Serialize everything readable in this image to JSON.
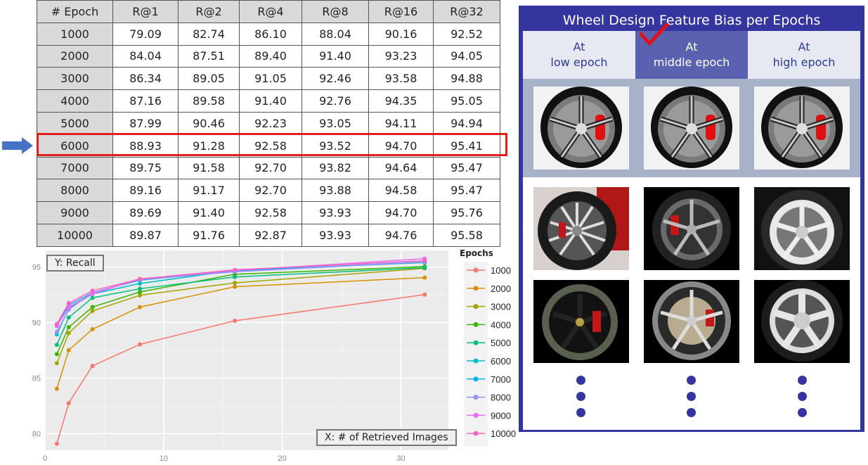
{
  "table": {
    "headers": [
      "# Epoch",
      "R@1",
      "R@2",
      "R@4",
      "R@8",
      "R@16",
      "R@32"
    ],
    "rows": [
      [
        "1000",
        "79.09",
        "82.74",
        "86.10",
        "88.04",
        "90.16",
        "92.52"
      ],
      [
        "2000",
        "84.04",
        "87.51",
        "89.40",
        "91.40",
        "93.23",
        "94.05"
      ],
      [
        "3000",
        "86.34",
        "89.05",
        "91.05",
        "92.46",
        "93.58",
        "94.88"
      ],
      [
        "4000",
        "87.16",
        "89.58",
        "91.40",
        "92.76",
        "94.35",
        "95.05"
      ],
      [
        "5000",
        "87.99",
        "90.46",
        "92.23",
        "93.05",
        "94.11",
        "94.94"
      ],
      [
        "6000",
        "88.93",
        "91.28",
        "92.58",
        "93.52",
        "94.70",
        "95.41"
      ],
      [
        "7000",
        "89.75",
        "91.58",
        "92.70",
        "93.82",
        "94.64",
        "95.47"
      ],
      [
        "8000",
        "89.16",
        "91.17",
        "92.70",
        "93.88",
        "94.58",
        "95.47"
      ],
      [
        "9000",
        "89.69",
        "91.40",
        "92.58",
        "93.93",
        "94.70",
        "95.76"
      ],
      [
        "10000",
        "89.87",
        "91.76",
        "92.87",
        "93.93",
        "94.76",
        "95.58"
      ]
    ],
    "highlighted_row": "6000",
    "highlight_color": "#e02020",
    "arrow_color": "#4472c4"
  },
  "chart_data": {
    "type": "line",
    "title": "",
    "xlabel": "X: # of Retrieved Images",
    "ylabel": "Y: Recall",
    "x": [
      1,
      2,
      4,
      8,
      16,
      32
    ],
    "xlim": [
      0,
      34
    ],
    "ylim": [
      78.5,
      96.5
    ],
    "xticks": [
      0,
      10,
      20,
      30
    ],
    "yticks": [
      80,
      85,
      90,
      95
    ],
    "grid": true,
    "legend_title": "Epochs",
    "legend_position": "right",
    "series": [
      {
        "name": "1000",
        "color": "#f8766d",
        "values": [
          79.09,
          82.74,
          86.1,
          88.04,
          90.16,
          92.52
        ]
      },
      {
        "name": "2000",
        "color": "#d89000",
        "values": [
          84.04,
          87.51,
          89.4,
          91.4,
          93.23,
          94.05
        ]
      },
      {
        "name": "3000",
        "color": "#a3a500",
        "values": [
          86.34,
          89.05,
          91.05,
          92.46,
          93.58,
          94.88
        ]
      },
      {
        "name": "4000",
        "color": "#39b600",
        "values": [
          87.16,
          89.58,
          91.4,
          92.76,
          94.35,
          95.05
        ]
      },
      {
        "name": "5000",
        "color": "#00bf7d",
        "values": [
          87.99,
          90.46,
          92.23,
          93.05,
          94.11,
          94.94
        ]
      },
      {
        "name": "6000",
        "color": "#00bfc4",
        "values": [
          88.93,
          91.28,
          92.58,
          93.52,
          94.7,
          95.41
        ]
      },
      {
        "name": "7000",
        "color": "#00b0f6",
        "values": [
          89.75,
          91.58,
          92.7,
          93.82,
          94.64,
          95.47
        ]
      },
      {
        "name": "8000",
        "color": "#9590ff",
        "values": [
          89.16,
          91.17,
          92.7,
          93.88,
          94.58,
          95.47
        ]
      },
      {
        "name": "9000",
        "color": "#e76bf3",
        "values": [
          89.69,
          91.4,
          92.58,
          93.93,
          94.7,
          95.76
        ]
      },
      {
        "name": "10000",
        "color": "#ff62bc",
        "values": [
          89.87,
          91.76,
          92.87,
          93.93,
          94.76,
          95.58
        ]
      }
    ]
  },
  "panel": {
    "title": "Wheel Design Feature Bias per Epochs",
    "columns": [
      {
        "line1": "At",
        "line2": "low epoch"
      },
      {
        "line1": "At",
        "line2": "middle epoch"
      },
      {
        "line1": "At",
        "line2": "high epoch"
      }
    ],
    "selected_column": "middle epoch",
    "selected_marker": "checkmark",
    "accent_color": "#3535a0",
    "rows": [
      [
        "query-wheel",
        "query-wheel",
        "query-wheel"
      ],
      [
        "multi-spoke-wheel-red-car",
        "five-double-spoke-wheel-red-caliper",
        "silver-five-double-spoke-wheel"
      ],
      [
        "black-wheel-red-caliper",
        "chrome-split-spoke-wheel",
        "silver-five-spoke-wheel"
      ]
    ],
    "ellipsis": "vertical-dots"
  }
}
